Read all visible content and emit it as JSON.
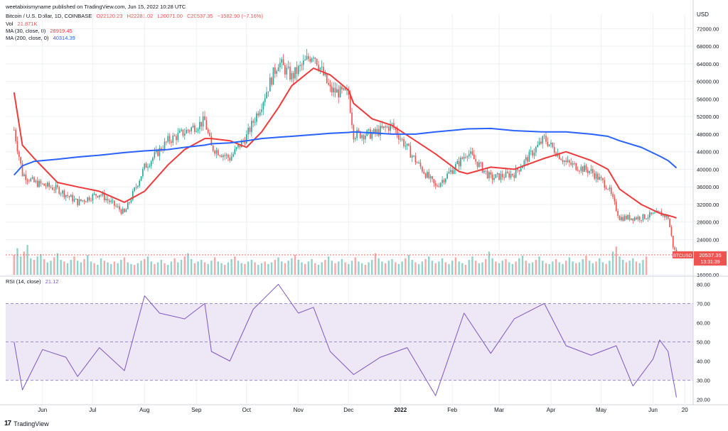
{
  "published_by": "weetabixismyname published on TradingView.com, Jun 15, 2022 10:28 UTC",
  "symbol_line": {
    "name": "Bitcoin / U.S. Dollar, 1D, COINBASE",
    "o": "O22120.23",
    "h": "H22281.02",
    "l": "L20071.00",
    "c": "C20537.35",
    "chg": "−1582.90 (−7.16%)"
  },
  "vol_line": {
    "label": "Vol",
    "value": "21.871K"
  },
  "ma30_line": {
    "label": "MA (30, close, 0)",
    "value": "28919.45"
  },
  "ma200_line": {
    "label": "MA (200, close, 0)",
    "value": "40314.39"
  },
  "rsi_line": {
    "label": "RSI (14, close)",
    "value": "21.12"
  },
  "price_tag": {
    "symbol": "BTCUSD",
    "price": "20537.35",
    "countdown": "13:31:39"
  },
  "currency": "USD",
  "watermark": "TradingView",
  "colors": {
    "up": "#26a69a",
    "down": "#ef5350",
    "ma30": "#ef3b3b",
    "ma200": "#2962ff",
    "rsi": "#7e57c2",
    "rsi_band": "#ede7f6",
    "grid": "#eef0f3",
    "axis_text": "#131722"
  },
  "chart_data": [
    {
      "type": "line",
      "title": "Bitcoin / U.S. Dollar, 1D, COINBASE",
      "x_tick_labels": [
        "Jun",
        "Jul",
        "Aug",
        "Sep",
        "Oct",
        "Nov",
        "Dec",
        "2022",
        "Feb",
        "Mar",
        "Apr",
        "May",
        "Jun",
        "20"
      ],
      "y_tick_labels": [
        "72000.00",
        "68000.00",
        "64000.00",
        "60000.00",
        "56000.00",
        "52000.00",
        "48000.00",
        "44000.00",
        "40000.00",
        "36000.00",
        "32000.00",
        "28000.00",
        "24000.00",
        "20000.00",
        "16000.00"
      ],
      "ylim": [
        16000,
        74000
      ],
      "x": [
        "2021-05-15",
        "2021-05-20",
        "2021-05-27",
        "2021-06-10",
        "2021-06-22",
        "2021-07-05",
        "2021-07-20",
        "2021-08-01",
        "2021-08-15",
        "2021-08-25",
        "2021-09-06",
        "2021-09-10",
        "2021-09-21",
        "2021-10-01",
        "2021-10-10",
        "2021-10-20",
        "2021-10-28",
        "2021-11-10",
        "2021-11-20",
        "2021-12-01",
        "2021-12-04",
        "2021-12-15",
        "2021-12-27",
        "2022-01-10",
        "2022-01-22",
        "2022-02-05",
        "2022-02-10",
        "2022-02-24",
        "2022-03-10",
        "2022-03-28",
        "2022-04-10",
        "2022-04-25",
        "2022-05-05",
        "2022-05-12",
        "2022-05-25",
        "2022-06-05",
        "2022-06-10",
        "2022-06-13",
        "2022-06-15"
      ],
      "series": [
        {
          "name": "BTCUSD",
          "values": [
            49000,
            39000,
            37000,
            35500,
            32500,
            34500,
            30000,
            40500,
            46500,
            48500,
            51000,
            45000,
            42500,
            47500,
            55000,
            64500,
            61000,
            66500,
            58000,
            57000,
            48000,
            48000,
            50000,
            42000,
            36000,
            41500,
            44000,
            38000,
            39000,
            47000,
            41500,
            39500,
            36000,
            29000,
            29000,
            30000,
            29000,
            22500,
            20537
          ]
        },
        {
          "name": "MA (30, close, 0)",
          "values": [
            57500,
            45500,
            42500,
            37000,
            36000,
            35000,
            32500,
            35000,
            41000,
            44500,
            47000,
            47000,
            46500,
            45000,
            48500,
            54000,
            59000,
            63000,
            61500,
            58000,
            55000,
            51500,
            50000,
            46500,
            43500,
            39500,
            39000,
            40500,
            40000,
            42500,
            44000,
            42000,
            40000,
            35500,
            32000,
            30000,
            29500,
            29200,
            28919
          ]
        },
        {
          "name": "MA (200, close, 0)",
          "values": [
            38700,
            40800,
            41800,
            42300,
            42800,
            43200,
            43800,
            44200,
            44500,
            45000,
            45500,
            45800,
            46000,
            46500,
            47000,
            47300,
            47500,
            47900,
            48200,
            48400,
            48500,
            48300,
            48000,
            48000,
            48500,
            49000,
            49200,
            49300,
            48800,
            48500,
            48500,
            48000,
            47500,
            46500,
            45000,
            43000,
            42000,
            41000,
            40314
          ]
        }
      ]
    },
    {
      "type": "line",
      "title": "RSI (14, close)",
      "y_tick_labels": [
        "80.00",
        "70.00",
        "60.00",
        "50.00",
        "40.00",
        "30.00",
        "20.00"
      ],
      "ylim": [
        18,
        82
      ],
      "bands": [
        30,
        50,
        70
      ],
      "x": [
        "2021-05-15",
        "2021-05-20",
        "2021-06-01",
        "2021-06-15",
        "2021-06-22",
        "2021-07-05",
        "2021-07-20",
        "2021-08-01",
        "2021-08-10",
        "2021-08-25",
        "2021-09-06",
        "2021-09-10",
        "2021-09-21",
        "2021-10-05",
        "2021-10-20",
        "2021-11-01",
        "2021-11-10",
        "2021-11-20",
        "2021-12-04",
        "2021-12-20",
        "2022-01-05",
        "2022-01-22",
        "2022-02-08",
        "2022-02-24",
        "2022-03-10",
        "2022-03-28",
        "2022-04-10",
        "2022-04-25",
        "2022-05-10",
        "2022-05-20",
        "2022-06-01",
        "2022-06-05",
        "2022-06-10",
        "2022-06-15"
      ],
      "series": [
        {
          "name": "RSI (14, close)",
          "values": [
            50,
            25,
            46,
            42,
            32,
            47,
            35,
            74,
            65,
            62,
            70,
            45,
            40,
            67,
            80,
            65,
            68,
            45,
            33,
            42,
            47,
            22,
            65,
            44,
            62,
            70,
            48,
            43,
            48,
            27,
            41,
            51,
            45,
            21.12
          ]
        }
      ]
    },
    {
      "type": "bar",
      "title": "Vol",
      "note": "relative daily volume bars, values in thousands (estimated)",
      "values_k": [
        24,
        32,
        22,
        28,
        36,
        20,
        18,
        22,
        25,
        19,
        15,
        17,
        21,
        26,
        18,
        16,
        14,
        18,
        22,
        17,
        15,
        19,
        24,
        16,
        14,
        12,
        20,
        17,
        15,
        13,
        16,
        14,
        18,
        21,
        15,
        13,
        12,
        14,
        17,
        19,
        22,
        16,
        13,
        15,
        18,
        14,
        12,
        16,
        20,
        15,
        18,
        22,
        26,
        19,
        14,
        16,
        18,
        15,
        13,
        17,
        21,
        16,
        14,
        12,
        15,
        19,
        22,
        17,
        14,
        13,
        16,
        18,
        15,
        12,
        14,
        16,
        13,
        15,
        18,
        21,
        16,
        14,
        17,
        20,
        24,
        18,
        15,
        13,
        16,
        19,
        14,
        12,
        15,
        18,
        22,
        17,
        14,
        16,
        19,
        15,
        13,
        17,
        21,
        16,
        14,
        12,
        15,
        18,
        26,
        20,
        16,
        14,
        17,
        19,
        15,
        13,
        16,
        20,
        24,
        18,
        15,
        13,
        16,
        19,
        22,
        17,
        14,
        16,
        20,
        15,
        13,
        17,
        21,
        16,
        14,
        12,
        18,
        22,
        17,
        14,
        15,
        19,
        28,
        20,
        16,
        14,
        17,
        19,
        15,
        13,
        16,
        20,
        23,
        17,
        14,
        15,
        18,
        22,
        17,
        14,
        13,
        16,
        19,
        15,
        13,
        17,
        21,
        16,
        14,
        15,
        19,
        23,
        17,
        14,
        16,
        20,
        15,
        13,
        17,
        28,
        34,
        22,
        18,
        15,
        17,
        20,
        16,
        14,
        18,
        22
      ]
    }
  ]
}
